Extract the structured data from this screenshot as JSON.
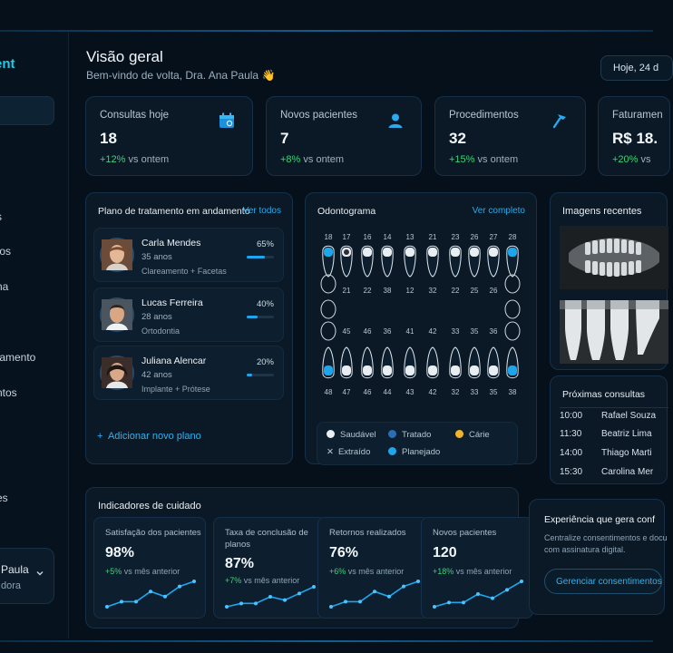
{
  "sidebar": {
    "brand": "ent",
    "items": [
      "s",
      "tos",
      "na",
      "tamento",
      "ntos",
      "es"
    ],
    "user": {
      "name": "Paula",
      "role": "dora"
    }
  },
  "header": {
    "title": "Visão geral",
    "subtitle": "Bem-vindo de volta, Dra. Ana Paula 👋",
    "date": "Hoje, 24 d"
  },
  "stats": [
    {
      "label": "Consultas hoje",
      "value": "18",
      "delta": "+12%",
      "delta_suffix": "vs ontem",
      "icon": "calendar-icon"
    },
    {
      "label": "Novos pacientes",
      "value": "7",
      "delta": "+8%",
      "delta_suffix": "vs ontem",
      "icon": "user-icon"
    },
    {
      "label": "Procedimentos",
      "value": "32",
      "delta": "+15%",
      "delta_suffix": "vs ontem",
      "icon": "dental-tool-icon"
    },
    {
      "label": "Faturamen",
      "value": "R$ 18.",
      "delta": "+20%",
      "delta_suffix": "vs ",
      "icon": ""
    }
  ],
  "treatment": {
    "title": "Plano de tratamento em andamento",
    "link": "Ver todos",
    "patients": [
      {
        "name": "Carla Mendes",
        "age": "35 anos",
        "treatment": "Clareamento + Facetas",
        "progress": "65%",
        "progress_value": 0.65
      },
      {
        "name": "Lucas Ferreira",
        "age": "28 anos",
        "treatment": "Ortodontia",
        "progress": "40%",
        "progress_value": 0.4
      },
      {
        "name": "Juliana Alencar",
        "age": "42 anos",
        "treatment": "Implante + Prótese",
        "progress": "20%",
        "progress_value": 0.2
      }
    ],
    "add_label": "Adicionar novo plano"
  },
  "odontogram": {
    "title": "Odontograma",
    "link": "Ver completo",
    "upper_numbers": [
      "18",
      "17",
      "16",
      "14",
      "13",
      "21",
      "23",
      "26",
      "27",
      "28"
    ],
    "upper_inner_numbers": [
      "21",
      "22",
      "38",
      "12",
      "32",
      "22",
      "25",
      "26"
    ],
    "lower_inner_numbers": [
      "45",
      "46",
      "36",
      "41",
      "42",
      "33",
      "35",
      "36"
    ],
    "lower_numbers": [
      "48",
      "47",
      "46",
      "44",
      "43",
      "42",
      "32",
      "33",
      "35",
      "38"
    ],
    "legend": [
      {
        "label": "Saudável",
        "color": "#e9eef2"
      },
      {
        "label": "Tratado",
        "color": "#2a6fb5"
      },
      {
        "label": "Cárie",
        "color": "#f0b429"
      },
      {
        "label": "Extraído",
        "color": ""
      },
      {
        "label": "Planejado",
        "color": "#1ea6ec"
      }
    ]
  },
  "images": {
    "title": "Imagens recentes"
  },
  "appointments": {
    "title": "Próximas consultas",
    "rows": [
      {
        "time": "10:00",
        "name": "Rafael Souza"
      },
      {
        "time": "11:30",
        "name": "Beatriz Lima"
      },
      {
        "time": "14:00",
        "name": "Thiago Marti"
      },
      {
        "time": "15:30",
        "name": "Carolina Mer"
      }
    ]
  },
  "indicators": {
    "title": "Indicadores de cuidado",
    "items": [
      {
        "label": "Satisfação dos pacientes",
        "value": "98%",
        "delta": "+5%",
        "delta_suffix": "vs mês anterior",
        "trend": [
          2,
          3,
          3,
          5,
          4,
          6,
          7
        ]
      },
      {
        "label": "Taxa de conclusão de planos",
        "value": "87%",
        "delta": "+7%",
        "delta_suffix": "vs mês anterior",
        "trend": [
          1,
          2,
          2,
          4,
          3,
          5,
          7
        ]
      },
      {
        "label": "Retornos realizados",
        "value": "76%",
        "delta": "+6%",
        "delta_suffix": "vs mês anterior",
        "trend": [
          2,
          3,
          3,
          5,
          4,
          6,
          7
        ]
      },
      {
        "label": "Novos pacientes",
        "value": "120",
        "delta": "+18%",
        "delta_suffix": "vs mês anterior",
        "trend": [
          1,
          2,
          2,
          4,
          3,
          5,
          7
        ]
      }
    ]
  },
  "consent": {
    "title": "Experiência que gera conf",
    "description": "Centralize consentimentos e docu com assinatura digital.",
    "button": "Gerenciar consentimentos"
  },
  "colors": {
    "accent": "#1ea6ec",
    "positive": "#3ed17a",
    "card": "#0b1926",
    "background": "#05101a"
  }
}
